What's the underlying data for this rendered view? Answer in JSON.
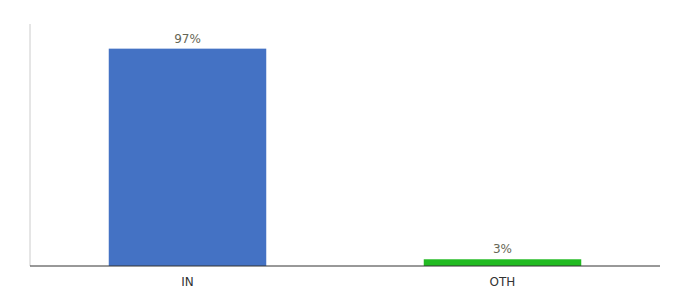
{
  "chart_data": {
    "type": "bar",
    "categories": [
      "IN",
      "OTH"
    ],
    "values": [
      97,
      3
    ],
    "value_labels": [
      "97%",
      "3%"
    ],
    "data_labels": true,
    "colors": [
      "#4472c4",
      "#22bb22"
    ],
    "ylim": [
      0,
      108
    ],
    "tick_labels": "x"
  }
}
